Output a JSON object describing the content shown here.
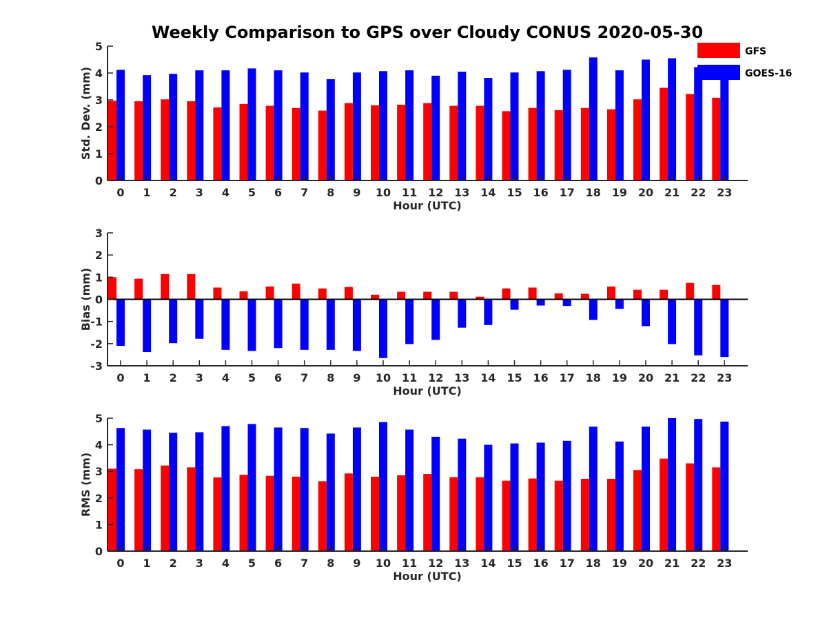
{
  "figure": {
    "title": "Weekly Comparison to GPS over Cloudy CONUS 2020-05-30",
    "legend": {
      "placement": "top-right",
      "entries": [
        {
          "name": "GFS",
          "color": "#ff0000"
        },
        {
          "name": "GOES-16",
          "color": "#0000ff"
        }
      ]
    }
  },
  "chart_data": [
    {
      "type": "bar",
      "xlabel": "Hour (UTC)",
      "ylabel": "Std. Dev. (mm)",
      "ylim": [
        0,
        5
      ],
      "yticks": [
        0,
        1,
        2,
        3,
        4,
        5
      ],
      "categories": [
        "0",
        "1",
        "2",
        "3",
        "4",
        "5",
        "6",
        "7",
        "8",
        "9",
        "10",
        "11",
        "12",
        "13",
        "14",
        "15",
        "16",
        "17",
        "18",
        "19",
        "20",
        "21",
        "22",
        "23"
      ],
      "series": [
        {
          "name": "GFS",
          "color": "#ff0000",
          "values": [
            2.97,
            2.95,
            3.02,
            2.95,
            2.72,
            2.85,
            2.78,
            2.7,
            2.6,
            2.88,
            2.8,
            2.82,
            2.88,
            2.78,
            2.78,
            2.58,
            2.7,
            2.62,
            2.7,
            2.65,
            3.02,
            3.45,
            3.22,
            3.08
          ]
        },
        {
          "name": "GOES-16",
          "color": "#0000ff",
          "values": [
            4.12,
            3.92,
            3.97,
            4.1,
            4.1,
            4.17,
            4.1,
            4.02,
            3.77,
            4.02,
            4.07,
            4.1,
            3.9,
            4.05,
            3.82,
            4.02,
            4.07,
            4.12,
            4.58,
            4.1,
            4.5,
            4.55,
            4.22,
            4.05
          ]
        }
      ]
    },
    {
      "type": "bar",
      "xlabel": "Hour (UTC)",
      "ylabel": "Bias (mm)",
      "ylim": [
        -3,
        3
      ],
      "yticks": [
        -3,
        -2,
        -1,
        0,
        1,
        2,
        3
      ],
      "categories": [
        "0",
        "1",
        "2",
        "3",
        "4",
        "5",
        "6",
        "7",
        "8",
        "9",
        "10",
        "11",
        "12",
        "13",
        "14",
        "15",
        "16",
        "17",
        "18",
        "19",
        "20",
        "21",
        "22",
        "23"
      ],
      "series": [
        {
          "name": "GFS",
          "color": "#ff0000",
          "values": [
            1.0,
            0.93,
            1.14,
            1.14,
            0.53,
            0.36,
            0.58,
            0.71,
            0.49,
            0.56,
            0.21,
            0.34,
            0.34,
            0.34,
            0.12,
            0.49,
            0.53,
            0.27,
            0.25,
            0.58,
            0.43,
            0.43,
            0.74,
            0.65
          ]
        },
        {
          "name": "GOES-16",
          "color": "#0000ff",
          "values": [
            -2.1,
            -2.38,
            -1.98,
            -1.78,
            -2.28,
            -2.33,
            -2.2,
            -2.28,
            -2.28,
            -2.33,
            -2.65,
            -2.02,
            -1.83,
            -1.28,
            -1.16,
            -0.47,
            -0.28,
            -0.3,
            -0.93,
            -0.43,
            -1.21,
            -2.02,
            -2.53,
            -2.6
          ]
        }
      ]
    },
    {
      "type": "bar",
      "xlabel": "Hour (UTC)",
      "ylabel": "RMS (mm)",
      "ylim": [
        0,
        5
      ],
      "yticks": [
        0,
        1,
        2,
        3,
        4,
        5
      ],
      "categories": [
        "0",
        "1",
        "2",
        "3",
        "4",
        "5",
        "6",
        "7",
        "8",
        "9",
        "10",
        "11",
        "12",
        "13",
        "14",
        "15",
        "16",
        "17",
        "18",
        "19",
        "20",
        "21",
        "22",
        "23"
      ],
      "series": [
        {
          "name": "GFS",
          "color": "#ff0000",
          "values": [
            3.1,
            3.08,
            3.22,
            3.15,
            2.77,
            2.87,
            2.83,
            2.8,
            2.63,
            2.92,
            2.8,
            2.85,
            2.9,
            2.78,
            2.78,
            2.65,
            2.73,
            2.65,
            2.72,
            2.72,
            3.05,
            3.48,
            3.3,
            3.15
          ]
        },
        {
          "name": "GOES-16",
          "color": "#0000ff",
          "values": [
            4.63,
            4.57,
            4.45,
            4.47,
            4.7,
            4.78,
            4.65,
            4.63,
            4.42,
            4.65,
            4.85,
            4.57,
            4.3,
            4.23,
            4.0,
            4.05,
            4.08,
            4.15,
            4.68,
            4.12,
            4.68,
            5.0,
            4.97,
            4.87
          ]
        }
      ]
    }
  ]
}
